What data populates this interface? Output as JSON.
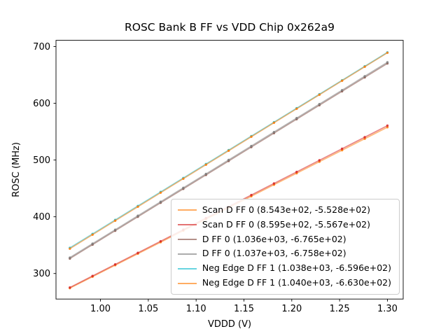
{
  "figure": {
    "background": "#ffffff"
  },
  "chart_data": {
    "type": "line",
    "title": "ROSC Bank B FF vs VDD Chip 0x262a9",
    "xlabel": "VDDD (V)",
    "ylabel": "ROSC (MHz)",
    "xlim": [
      0.9535,
      1.3165
    ],
    "ylim": [
      255,
      711
    ],
    "x_ticks": [
      {
        "value": 1.0,
        "label": "1.00"
      },
      {
        "value": 1.05,
        "label": "1.05"
      },
      {
        "value": 1.1,
        "label": "1.10"
      },
      {
        "value": 1.15,
        "label": "1.15"
      },
      {
        "value": 1.2,
        "label": "1.20"
      },
      {
        "value": 1.25,
        "label": "1.25"
      },
      {
        "value": 1.3,
        "label": "1.30"
      }
    ],
    "y_ticks": [
      {
        "value": 300,
        "label": "300"
      },
      {
        "value": 400,
        "label": "400"
      },
      {
        "value": 500,
        "label": "500"
      },
      {
        "value": 600,
        "label": "600"
      },
      {
        "value": 700,
        "label": "700"
      }
    ],
    "x_points": [
      0.968,
      0.9917,
      1.0154,
      1.0391,
      1.0629,
      1.0866,
      1.1103,
      1.134,
      1.1577,
      1.1814,
      1.2051,
      1.2289,
      1.2526,
      1.2763,
      1.3
    ],
    "series": [
      {
        "label": "Scan D FF 0 (8.543e+02, -5.528e+02)",
        "slope": 854.3,
        "intercept": -552.8,
        "color": "#ff7f0e"
      },
      {
        "label": "Scan D FF 0 (8.595e+02, -5.567e+02)",
        "slope": 859.5,
        "intercept": -556.7,
        "color": "#d62728"
      },
      {
        "label": "D FF 0 (1.036e+03, -6.765e+02)",
        "slope": 1036.0,
        "intercept": -676.5,
        "color": "#8c564b"
      },
      {
        "label": "D FF 0 (1.037e+03, -6.758e+02)",
        "slope": 1037.0,
        "intercept": -675.8,
        "color": "#7f7f7f"
      },
      {
        "label": "Neg Edge D FF 1 (1.038e+03, -6.596e+02)",
        "slope": 1038.0,
        "intercept": -659.6,
        "color": "#17becf"
      },
      {
        "label": "Neg Edge D FF 1 (1.040e+03, -6.630e+02)",
        "slope": 1040.0,
        "intercept": -663.0,
        "color": "#ff7f0e"
      }
    ],
    "legend_position": "lower right",
    "grid": false,
    "line_opacity": 0.55,
    "marker_opacity": 0.85,
    "axis_color": "#000000",
    "text_color": "#000000"
  }
}
